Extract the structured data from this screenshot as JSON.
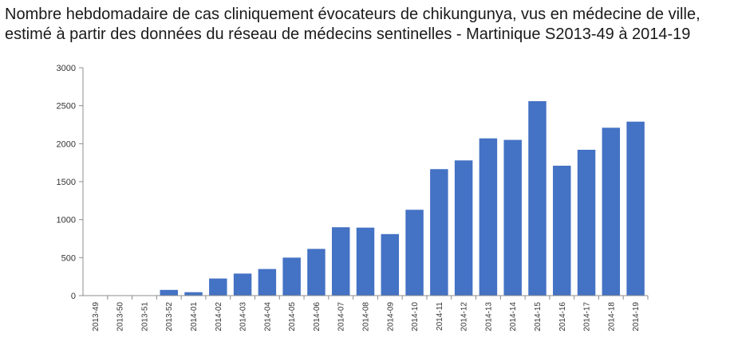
{
  "chart_data": {
    "type": "bar",
    "title_line1": "Nombre hebdomadaire de cas cliniquement évocateurs de chikungunya, vus en médecine de ville,",
    "title_line2": "estimé à partir des données du réseau de médecins sentinelles - Martinique S2013-49 à 2014-19",
    "xlabel": "",
    "ylabel": "",
    "ylim": [
      0,
      3000
    ],
    "yticks": [
      0,
      500,
      1000,
      1500,
      2000,
      2500,
      3000
    ],
    "grid": false,
    "legend": "none",
    "bar_color": "#4472C4",
    "categories": [
      "2013-49",
      "2013-50",
      "2013-51",
      "2013-52",
      "2014-01",
      "2014-02",
      "2014-03",
      "2014-04",
      "2014-05",
      "2014-06",
      "2014-07",
      "2014-08",
      "2014-09",
      "2014-10",
      "2014-11",
      "2014-12",
      "2014-13",
      "2014-14",
      "2014-15",
      "2014-16",
      "2014-17",
      "2014-18",
      "2014-19"
    ],
    "values": [
      0,
      0,
      0,
      75,
      45,
      225,
      290,
      350,
      500,
      615,
      900,
      895,
      810,
      1130,
      1665,
      1780,
      2070,
      2050,
      2560,
      1710,
      1920,
      2210,
      2290
    ]
  }
}
